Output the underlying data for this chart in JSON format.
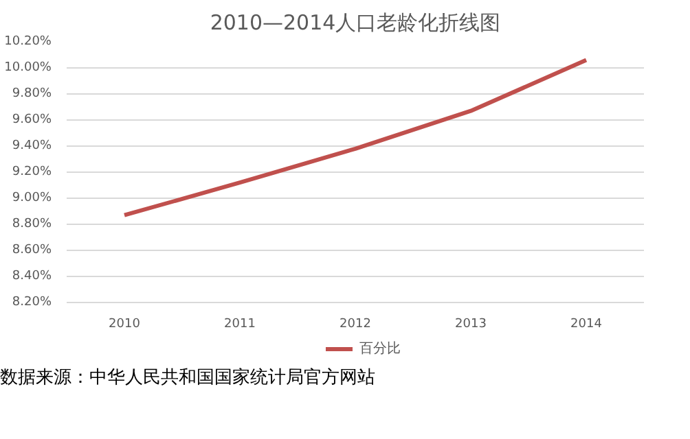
{
  "chart_data": {
    "type": "line",
    "title": "2010—2014人口老龄化折线图",
    "categories": [
      "2010",
      "2011",
      "2012",
      "2013",
      "2014"
    ],
    "series": [
      {
        "name": "百分比",
        "color": "#c0504d",
        "values": [
          8.87,
          9.12,
          9.38,
          9.67,
          10.06
        ]
      }
    ],
    "ylim": [
      8.2,
      10.2
    ],
    "yticks": [
      {
        "value": 8.2,
        "label": "8.20%"
      },
      {
        "value": 8.4,
        "label": "8.40%"
      },
      {
        "value": 8.6,
        "label": "8.60%"
      },
      {
        "value": 8.8,
        "label": "8.80%"
      },
      {
        "value": 9.0,
        "label": "9.00%"
      },
      {
        "value": 9.2,
        "label": "9.20%"
      },
      {
        "value": 9.4,
        "label": "9.40%"
      },
      {
        "value": 9.6,
        "label": "9.60%"
      },
      {
        "value": 9.8,
        "label": "9.80%"
      },
      {
        "value": 10.0,
        "label": "10.00%"
      },
      {
        "value": 10.2,
        "label": "10.20%"
      }
    ],
    "grid": "y",
    "legend": "bottom",
    "line_style": "solid",
    "annotations": [
      "数据来源：中华人民共和国国家统计局官方网站"
    ]
  }
}
